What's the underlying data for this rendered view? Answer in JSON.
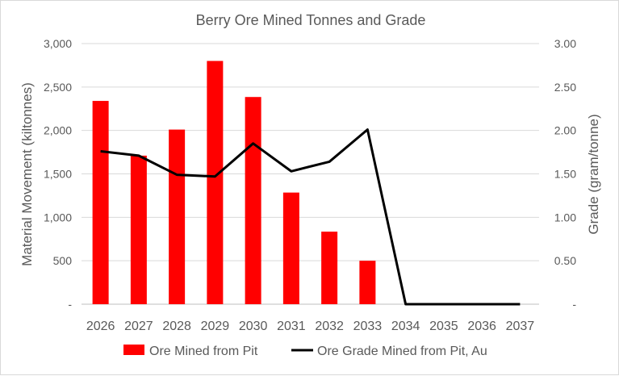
{
  "chart_data": {
    "type": "bar",
    "title": "Berry Ore Mined Tonnes and Grade",
    "categories": [
      "2026",
      "2027",
      "2028",
      "2029",
      "2030",
      "2031",
      "2032",
      "2033",
      "2034",
      "2035",
      "2036",
      "2037"
    ],
    "series": [
      {
        "name": "Ore Mined from Pit",
        "type": "bar",
        "axis": "left",
        "color": "#ff0000",
        "values": [
          2340,
          1710,
          2010,
          2800,
          2385,
          1285,
          835,
          500,
          0,
          0,
          0,
          0
        ]
      },
      {
        "name": "Ore Grade Mined from Pit, Au",
        "type": "line",
        "axis": "right",
        "color": "#000000",
        "values": [
          1.76,
          1.71,
          1.49,
          1.47,
          1.85,
          1.53,
          1.64,
          2.01,
          0,
          0,
          0,
          0
        ]
      }
    ],
    "ylabel": "Material Movement (kiltonnes)",
    "ylim": [
      0,
      3000
    ],
    "yticks": [
      "-",
      "500",
      "1,000",
      "1,500",
      "2,000",
      "2,500",
      "3,000"
    ],
    "y2label": "Grade (gram/tonne)",
    "y2lim": [
      0,
      3
    ],
    "y2ticks": [
      "-",
      "0.50",
      "1.00",
      "1.50",
      "2.00",
      "2.50",
      "3.00"
    ],
    "grid": true,
    "legend_position": "bottom"
  }
}
